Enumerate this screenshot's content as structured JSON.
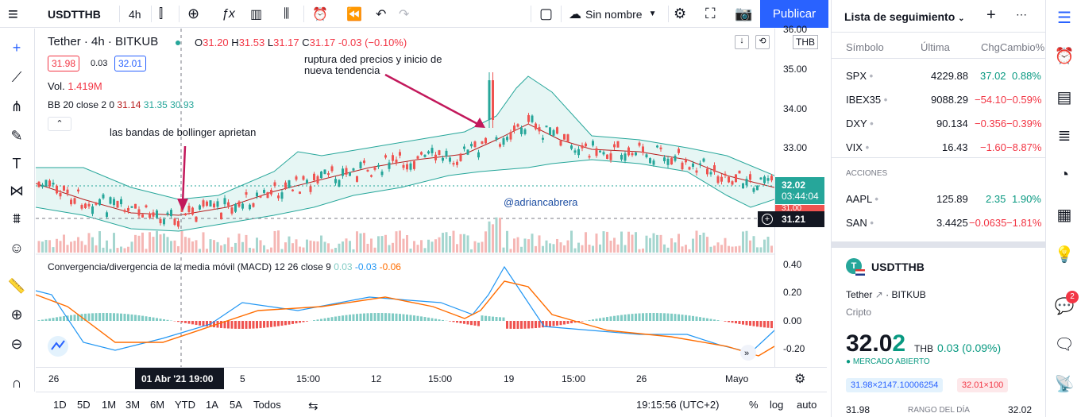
{
  "toolbar": {
    "menu_icon": "≡",
    "symbol": "USDTTHB",
    "interval": "4h",
    "layout_name": "Sin nombre",
    "publish": "Publicar"
  },
  "legend": {
    "title": "Tether · 4h · BITKUB",
    "o_label": "O",
    "o": "31.20",
    "h_label": "H",
    "h": "31.53",
    "l_label": "L",
    "l": "31.17",
    "c_label": "C",
    "c": "31.17",
    "chg": "-0.03 (−0.10%)",
    "bid": "31.98",
    "spread": "0.03",
    "ask": "32.01",
    "vol_label": "Vol.",
    "vol": "1.419M",
    "bb_label": "BB 20 close 2 0",
    "bb1": "31.14",
    "bb2": "31.35",
    "bb3": "30.93",
    "macd_label": "Convergencia/divergencia de la media móvil (MACD) 12 26 close 9",
    "m1": "0.03",
    "m2": "-0.03",
    "m3": "-0.06"
  },
  "annotations": {
    "a1": "ruptura ded precios y inicio de",
    "a1b": "nueva tendencia",
    "a2": "las bandas de bollinger aprietan",
    "watermark": "@adriancabrera"
  },
  "yaxis": {
    "currency": "THB",
    "top": "36.00",
    "labels": [
      "35.00",
      "34.00",
      "33.00"
    ],
    "price_tag": "32.02",
    "countdown": "03:44:04",
    "mid_tag": "31.21",
    "partial": "31.00",
    "macd_labels": [
      "0.40",
      "0.20",
      "0.00",
      "-0.20"
    ]
  },
  "xaxis": {
    "labels": [
      "26",
      "5",
      "15:00",
      "12",
      "15:00",
      "19",
      "15:00",
      "26",
      "Mayo"
    ],
    "cursor": "01 Abr '21  19:00"
  },
  "bottom": {
    "ranges": [
      "1D",
      "5D",
      "1M",
      "3M",
      "6M",
      "YTD",
      "1A",
      "5A",
      "Todos"
    ],
    "time": "19:15:56 (UTC+2)",
    "pct": "%",
    "log": "log",
    "auto": "auto"
  },
  "watchlist": {
    "title": "Lista de seguimiento",
    "cols": [
      "Símbolo",
      "Última",
      "ChgCambio%"
    ],
    "rows": [
      {
        "s": "SPX",
        "l": "4229.88",
        "c": "37.02",
        "p": "0.88%",
        "dir": "up"
      },
      {
        "s": "IBEX35",
        "l": "9088.29",
        "c": "−54.10",
        "p": "−0.59%",
        "dir": "down"
      },
      {
        "s": "DXY",
        "l": "90.134",
        "c": "−0.356",
        "p": "−0.39%",
        "dir": "down"
      },
      {
        "s": "VIX",
        "l": "16.43",
        "c": "−1.60",
        "p": "−8.87%",
        "dir": "down"
      }
    ],
    "section": "ACCIONES",
    "rows2": [
      {
        "s": "AAPL",
        "l": "125.89",
        "c": "2.35",
        "p": "1.90%",
        "dir": "up"
      },
      {
        "s": "SAN",
        "l": "3.4425",
        "c": "−0.0635",
        "p": "−1.81%",
        "dir": "down"
      }
    ]
  },
  "detail": {
    "symbol": "USDTTHB",
    "name": "Tether",
    "exchange": "BITKUB",
    "type": "Cripto",
    "price_main": "32.0",
    "price_last": "2",
    "currency": "THB",
    "change": "0.03 (0.09%)",
    "status": "MERCADO ABIERTO",
    "bid": "31.98×2147.10006254",
    "ask": "32.01×100",
    "low": "31.98",
    "range": "RANGO DEL DÍA",
    "high": "32.02"
  },
  "notif_count": "2",
  "colors": {
    "up": "#26a69a",
    "down": "#ef5350",
    "accent": "#2962ff",
    "band": "#e0f4f1",
    "macd": "#2196f3",
    "signal": "#ff6d00",
    "annot": "#c2185b"
  }
}
